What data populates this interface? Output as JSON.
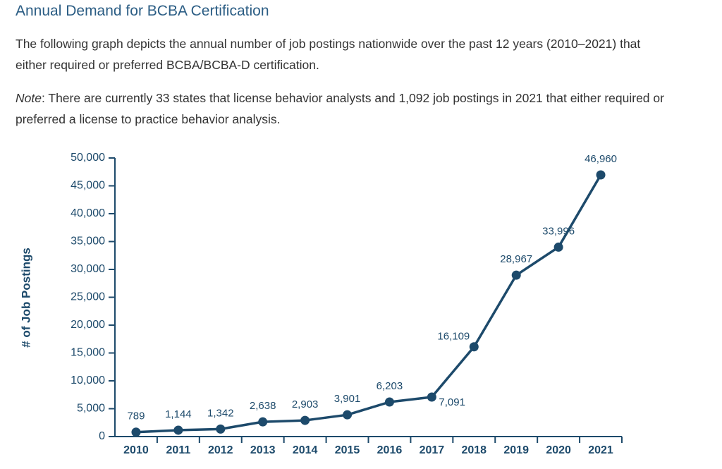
{
  "header": {
    "title": "Annual Demand for BCBA Certification"
  },
  "intro": "The following graph depicts the annual number of job postings nationwide over the past 12 years (2010–2021) that either required or preferred BCBA/BCBA-D certification.",
  "note": {
    "label": "Note",
    "text": ": There are currently 33 states that license behavior analysts and 1,092 job postings in 2021 that either required or preferred a license to practice behavior analysis."
  },
  "chart_data": {
    "type": "line",
    "y_label": "# of Job Postings",
    "categories": [
      "2010",
      "2011",
      "2012",
      "2013",
      "2014",
      "2015",
      "2016",
      "2017",
      "2018",
      "2019",
      "2020",
      "2021"
    ],
    "values": [
      789,
      1144,
      1342,
      2638,
      2903,
      3901,
      6203,
      7091,
      16109,
      28967,
      33996,
      46960
    ],
    "value_labels": [
      "789",
      "1,144",
      "1,342",
      "2,638",
      "2,903",
      "3,901",
      "6,203",
      "7,091",
      "16,109",
      "28,967",
      "33,996",
      "46,960"
    ],
    "color": "#1d4a6b",
    "ylim": [
      0,
      50000
    ],
    "yticks": [
      0,
      {
        "value": 5000,
        "label": "5,000"
      },
      {
        "value": 10000,
        "label": "10,000"
      },
      {
        "value": 15000,
        "label": "15,000"
      },
      {
        "value": 20000,
        "label": "20,000"
      },
      {
        "value": 25000,
        "label": "25,000"
      },
      {
        "value": 30000,
        "label": "30,000"
      },
      {
        "value": 35000,
        "label": "35,000"
      },
      {
        "value": 40000,
        "label": "40,000"
      },
      {
        "value": 45000,
        "label": "45,000"
      },
      {
        "value": 50000,
        "label": "50,000"
      }
    ]
  }
}
